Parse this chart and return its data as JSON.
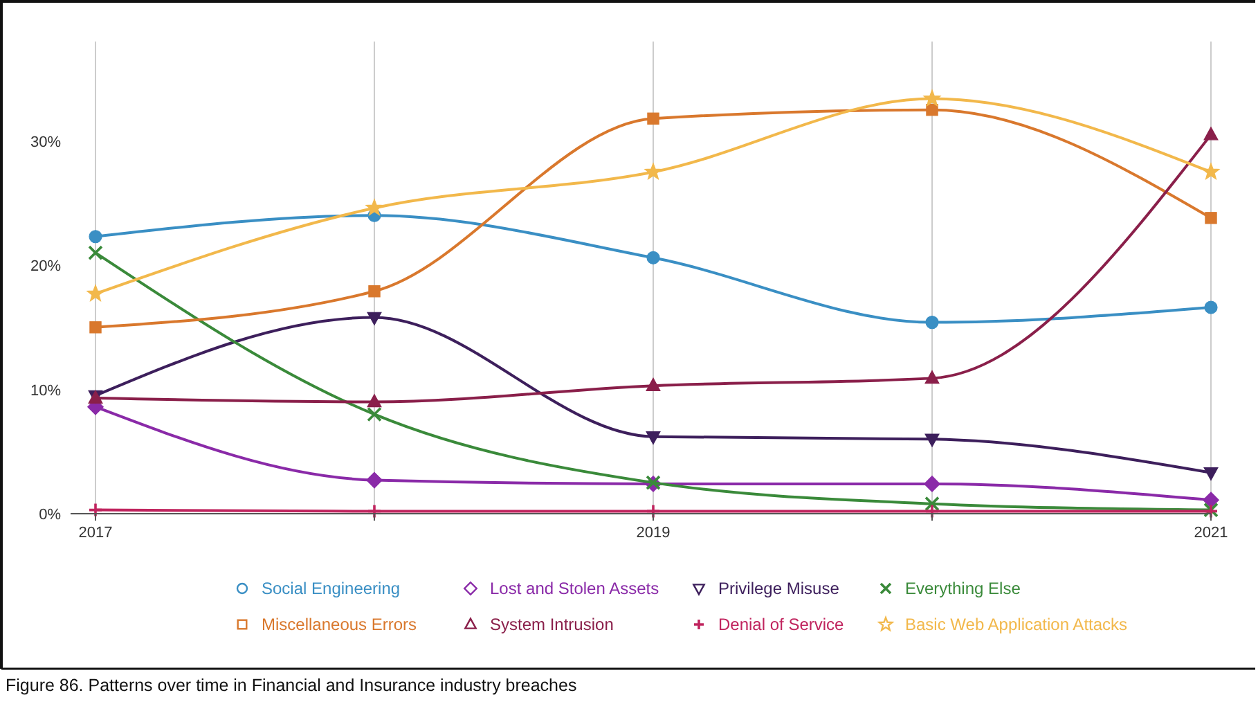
{
  "chart_data": {
    "type": "line",
    "title": "Figure 86. Patterns over time in Financial and Insurance industry breaches",
    "x": [
      2017,
      2018,
      2019,
      2020,
      2021
    ],
    "xlim": [
      2017,
      2021
    ],
    "xticks": [
      2017,
      {
        "value": 2018,
        "label": null
      },
      2019,
      {
        "value": 2020,
        "label": null
      },
      2021
    ],
    "ylim": [
      0,
      38
    ],
    "yticks": [
      {
        "value": 0,
        "label": "0%"
      },
      {
        "value": 10,
        "label": "10%"
      },
      {
        "value": 20,
        "label": "20%"
      },
      {
        "value": 30,
        "label": "30%"
      }
    ],
    "grid": "x",
    "legend": "bottom",
    "line_style": "solid",
    "series": [
      {
        "name": "Social Engineering",
        "color": "#3a8fc4",
        "marker": "circle",
        "values": [
          22.3,
          24,
          20.6,
          15.4,
          16.6
        ]
      },
      {
        "name": "Lost and Stolen Assets",
        "color": "#8a2aa8",
        "marker": "diamond",
        "values": [
          8.6,
          2.7,
          2.4,
          2.4,
          1.1
        ]
      },
      {
        "name": "Privilege Misuse",
        "color": "#3d1f5c",
        "marker": "triangle-down",
        "values": [
          9.5,
          15.8,
          6.2,
          6,
          3.3
        ]
      },
      {
        "name": "Everything Else",
        "color": "#3a8a3a",
        "marker": "cross",
        "values": [
          21,
          8,
          2.5,
          0.8,
          0.3
        ]
      },
      {
        "name": "Miscellaneous Errors",
        "color": "#d9782d",
        "marker": "square",
        "values": [
          15,
          17.9,
          31.8,
          32.5,
          23.8
        ]
      },
      {
        "name": "System Intrusion",
        "color": "#8a1f4a",
        "marker": "triangle",
        "values": [
          9.3,
          9,
          10.3,
          10.9,
          30.5
        ]
      },
      {
        "name": "Denial of Service",
        "color": "#c0245e",
        "marker": "plus",
        "values": [
          0.3,
          0.2,
          0.2,
          0.2,
          0.2
        ]
      },
      {
        "name": "Basic Web Application Attacks",
        "color": "#f2b84b",
        "marker": "star",
        "values": [
          17.7,
          24.6,
          27.5,
          33.4,
          27.5
        ]
      }
    ]
  }
}
